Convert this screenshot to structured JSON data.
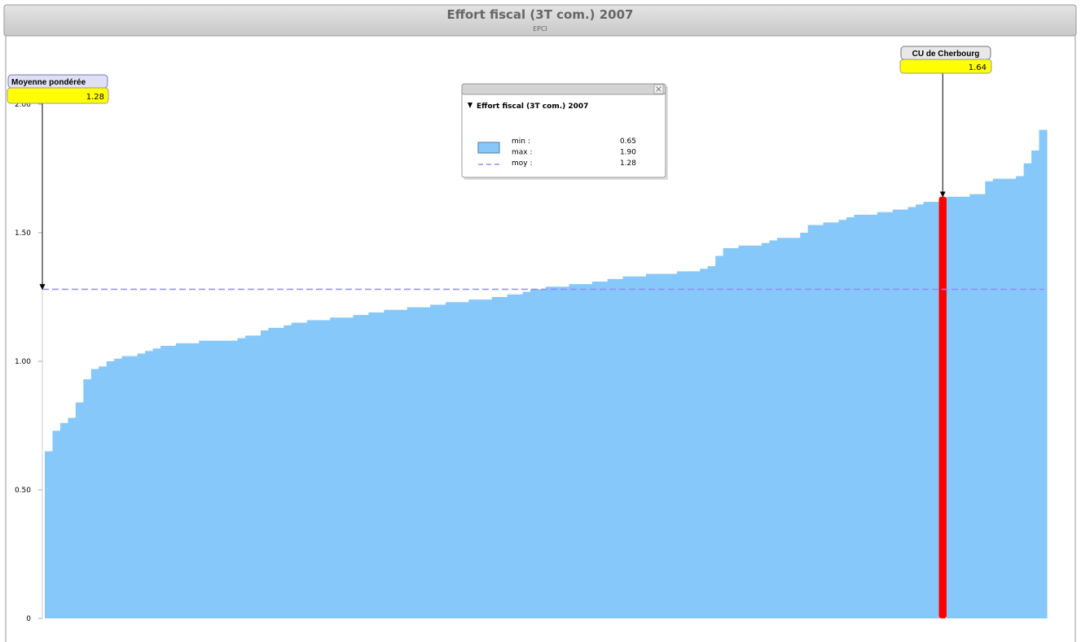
{
  "chart_data": {
    "type": "bar",
    "title": "Effort fiscal (3T com.) 2007",
    "subtitle": "EPCI",
    "values": [
      0.65,
      0.73,
      0.76,
      0.78,
      0.84,
      0.93,
      0.97,
      0.98,
      1.0,
      1.01,
      1.02,
      1.02,
      1.03,
      1.04,
      1.05,
      1.06,
      1.06,
      1.07,
      1.07,
      1.07,
      1.08,
      1.08,
      1.08,
      1.08,
      1.08,
      1.09,
      1.1,
      1.1,
      1.12,
      1.13,
      1.13,
      1.14,
      1.15,
      1.15,
      1.16,
      1.16,
      1.16,
      1.17,
      1.17,
      1.17,
      1.18,
      1.18,
      1.19,
      1.19,
      1.2,
      1.2,
      1.2,
      1.21,
      1.21,
      1.21,
      1.22,
      1.22,
      1.23,
      1.23,
      1.23,
      1.24,
      1.24,
      1.24,
      1.25,
      1.25,
      1.26,
      1.26,
      1.27,
      1.28,
      1.28,
      1.29,
      1.29,
      1.29,
      1.3,
      1.3,
      1.3,
      1.31,
      1.31,
      1.32,
      1.32,
      1.33,
      1.33,
      1.33,
      1.34,
      1.34,
      1.34,
      1.34,
      1.35,
      1.35,
      1.35,
      1.36,
      1.37,
      1.41,
      1.44,
      1.44,
      1.45,
      1.45,
      1.45,
      1.46,
      1.47,
      1.48,
      1.48,
      1.48,
      1.5,
      1.53,
      1.53,
      1.54,
      1.54,
      1.55,
      1.56,
      1.57,
      1.57,
      1.57,
      1.58,
      1.58,
      1.59,
      1.59,
      1.6,
      1.61,
      1.62,
      1.62,
      1.64,
      1.64,
      1.64,
      1.64,
      1.65,
      1.65,
      1.7,
      1.71,
      1.71,
      1.71,
      1.72,
      1.77,
      1.82,
      1.9
    ],
    "color": "#87c8fa",
    "ylim": [
      0,
      2
    ],
    "yticks": [
      0,
      {
        "value": 0.5,
        "label": "0.50"
      },
      {
        "value": 1,
        "label": "1.00"
      },
      {
        "value": 1.5,
        "label": "1.50"
      },
      {
        "value": 2,
        "label": "2.00"
      }
    ],
    "mean": {
      "name": "Moyenne pondérée",
      "value": 1.28,
      "color": "#8f8fef"
    },
    "highlight": {
      "index": 116,
      "name": "CU de Cherbourg",
      "value_label": "1.64",
      "color": "#ff0000"
    },
    "legend": {
      "min": {
        "name": "min :",
        "value": 0.65
      },
      "max": {
        "name": "max :",
        "value": 1.9,
        "label": "1.90"
      },
      "moy": {
        "name": "moy :"
      }
    }
  }
}
